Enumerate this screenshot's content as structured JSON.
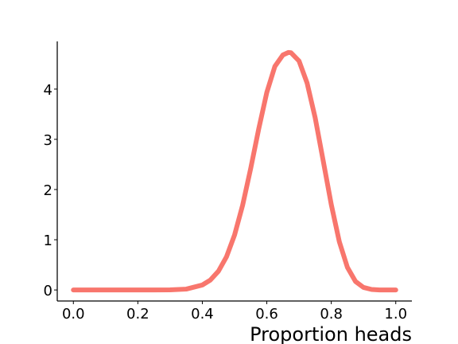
{
  "chart_data": {
    "type": "line",
    "title": "",
    "xlabel": "Proportion heads",
    "ylabel": "",
    "xlim": [
      -0.05,
      1.05
    ],
    "ylim": [
      -0.22,
      4.95
    ],
    "xticks": [
      0.0,
      0.2,
      0.4,
      0.6,
      0.8,
      1.0
    ],
    "xtick_labels": [
      "0.0",
      "0.2",
      "0.4",
      "0.6",
      "0.8",
      "1.0"
    ],
    "yticks": [
      0,
      1,
      2,
      3,
      4
    ],
    "ytick_labels": [
      "0",
      "1",
      "2",
      "3",
      "4"
    ],
    "grid": false,
    "series": [
      {
        "color": "#f8766d",
        "x": [
          0.0,
          0.05,
          0.1,
          0.15,
          0.2,
          0.25,
          0.3,
          0.35,
          0.4,
          0.425,
          0.45,
          0.475,
          0.5,
          0.525,
          0.55,
          0.575,
          0.6,
          0.625,
          0.65,
          0.667,
          0.675,
          0.7,
          0.725,
          0.75,
          0.775,
          0.8,
          0.825,
          0.85,
          0.875,
          0.9,
          0.925,
          0.95,
          1.0
        ],
        "y": [
          0.0,
          0.0,
          0.0,
          0.0,
          0.0,
          0.0,
          0.002,
          0.017,
          0.099,
          0.198,
          0.374,
          0.661,
          1.095,
          1.688,
          2.418,
          3.209,
          3.934,
          4.453,
          4.68,
          4.73,
          4.725,
          4.56,
          4.12,
          3.43,
          2.57,
          1.7,
          0.96,
          0.45,
          0.17,
          0.05,
          0.01,
          0.0,
          0.0
        ]
      }
    ]
  }
}
